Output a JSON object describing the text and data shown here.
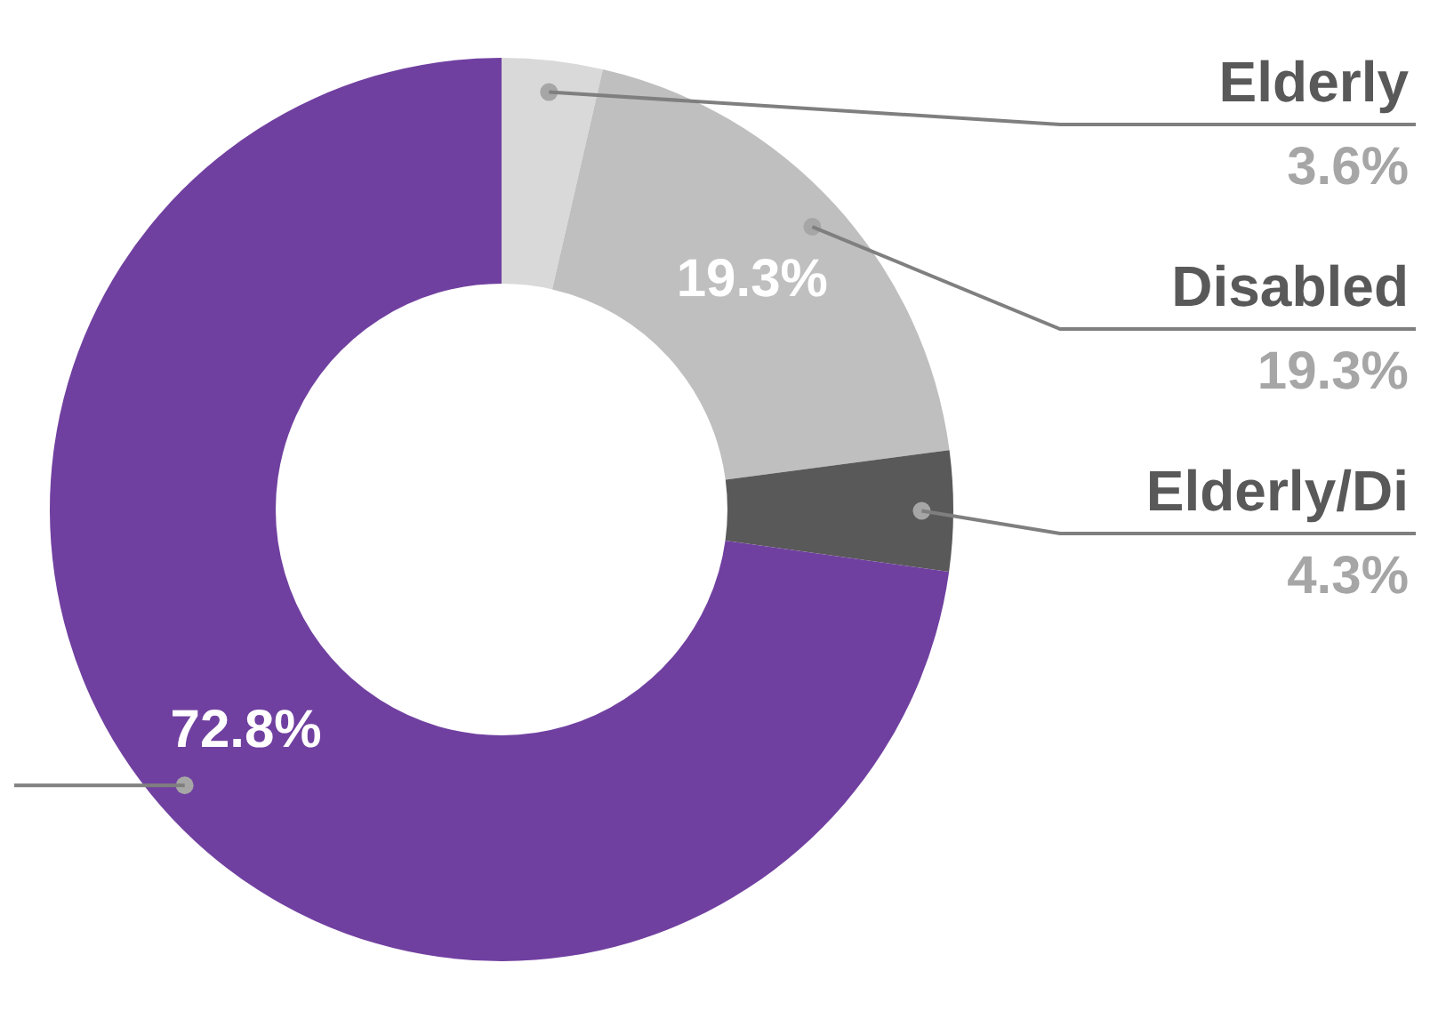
{
  "chart_data": {
    "type": "donut",
    "categories": [
      "Elderly",
      "Disabled",
      "Elderly/Di",
      null
    ],
    "values": [
      3.6,
      19.3,
      4.3,
      72.8
    ],
    "colors": [
      "#d9d9d9",
      "#bfbfbf",
      "#595959",
      "#7040a0"
    ],
    "value_labels": [
      "3.6%",
      "19.3%",
      "4.3%",
      "72.8%"
    ],
    "legend": false
  }
}
